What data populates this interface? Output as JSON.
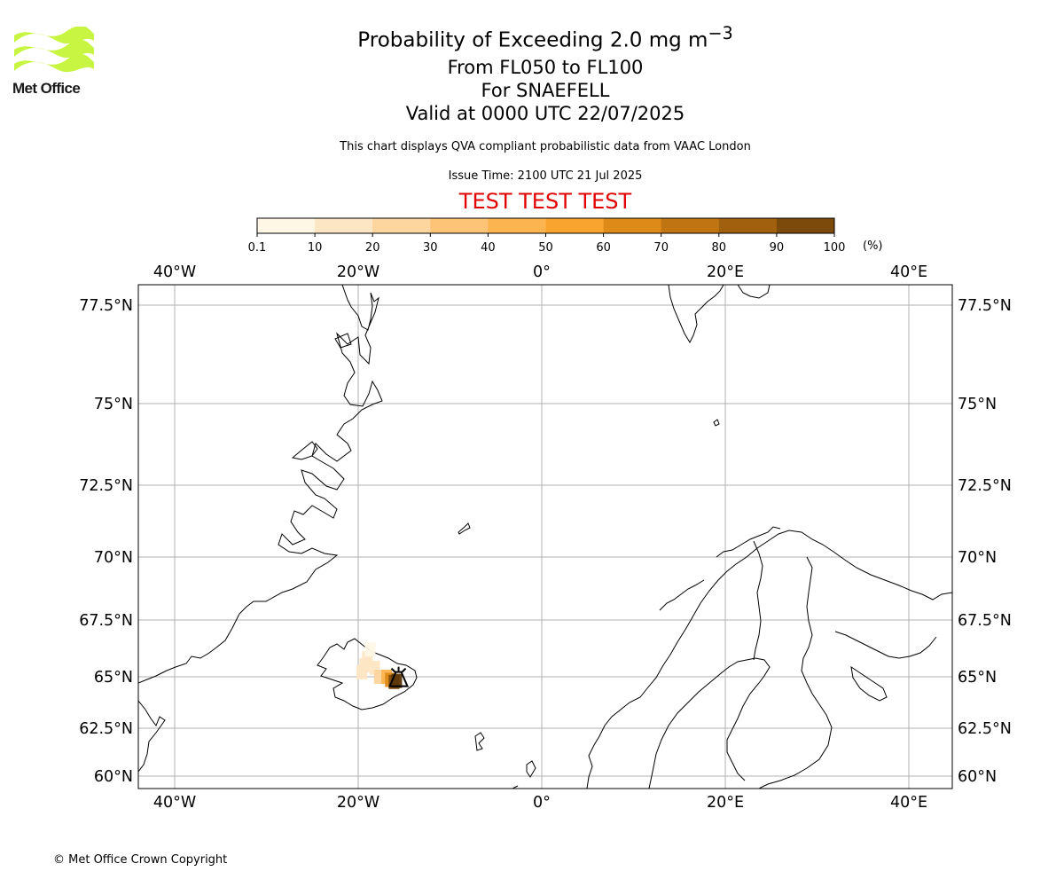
{
  "logo": {
    "text": "Met Office",
    "color": "#c8f542"
  },
  "title": {
    "line1": "Probability of Exceeding 2.0 mg m",
    "line1_sup": "−3",
    "line2": "From FL050 to FL100",
    "line3": "For SNAEFELL",
    "line4": "Valid at 0000 UTC 22/07/2025"
  },
  "subtitle": "This chart displays QVA compliant probabilistic data from VAAC London",
  "issue_time": "Issue Time: 2100 UTC 21 Jul 2025",
  "test_banner": "TEST TEST TEST",
  "colorbar": {
    "unit": "(%)",
    "ticks": [
      "0.1",
      "10",
      "20",
      "30",
      "40",
      "50",
      "60",
      "70",
      "80",
      "90",
      "100"
    ],
    "colors": [
      "#fff7e6",
      "#fde6c3",
      "#fdd59e",
      "#fdc478",
      "#fbb450",
      "#f9a42e",
      "#dd8a18",
      "#c07512",
      "#a1600e",
      "#7c4a0b",
      "#5c3708"
    ]
  },
  "axes": {
    "lon_labels": [
      "40°W",
      "20°W",
      "0°",
      "20°E",
      "40°E"
    ],
    "lat_labels": [
      "77.5°N",
      "75°N",
      "72.5°N",
      "70°N",
      "67.5°N",
      "65°N",
      "62.5°N",
      "60°N"
    ],
    "lon_extent": [
      -44,
      45
    ],
    "lat_extent": [
      59.5,
      78.5
    ],
    "grid": true
  },
  "volcano": {
    "name": "SNAEFELL",
    "lon": -15.6,
    "lat": 64.8
  },
  "plume": [
    {
      "lon": -19.0,
      "lat": 65.8,
      "probability_bin": 1
    },
    {
      "lon": -19.3,
      "lat": 65.5,
      "probability_bin": 1
    },
    {
      "lon": -19.6,
      "lat": 65.2,
      "probability_bin": 1
    },
    {
      "lon": -18.7,
      "lat": 66.2,
      "probability_bin": 0
    },
    {
      "lon": -18.2,
      "lat": 65.4,
      "probability_bin": 1
    },
    {
      "lon": -17.7,
      "lat": 65.0,
      "probability_bin": 2
    },
    {
      "lon": -16.9,
      "lat": 65.0,
      "probability_bin": 4
    },
    {
      "lon": -16.5,
      "lat": 64.85,
      "probability_bin": 6
    },
    {
      "lon": -16.1,
      "lat": 64.75,
      "probability_bin": 9
    },
    {
      "lon": -15.8,
      "lat": 64.8,
      "probability_bin": 10
    }
  ],
  "copyright": "© Met Office Crown Copyright"
}
